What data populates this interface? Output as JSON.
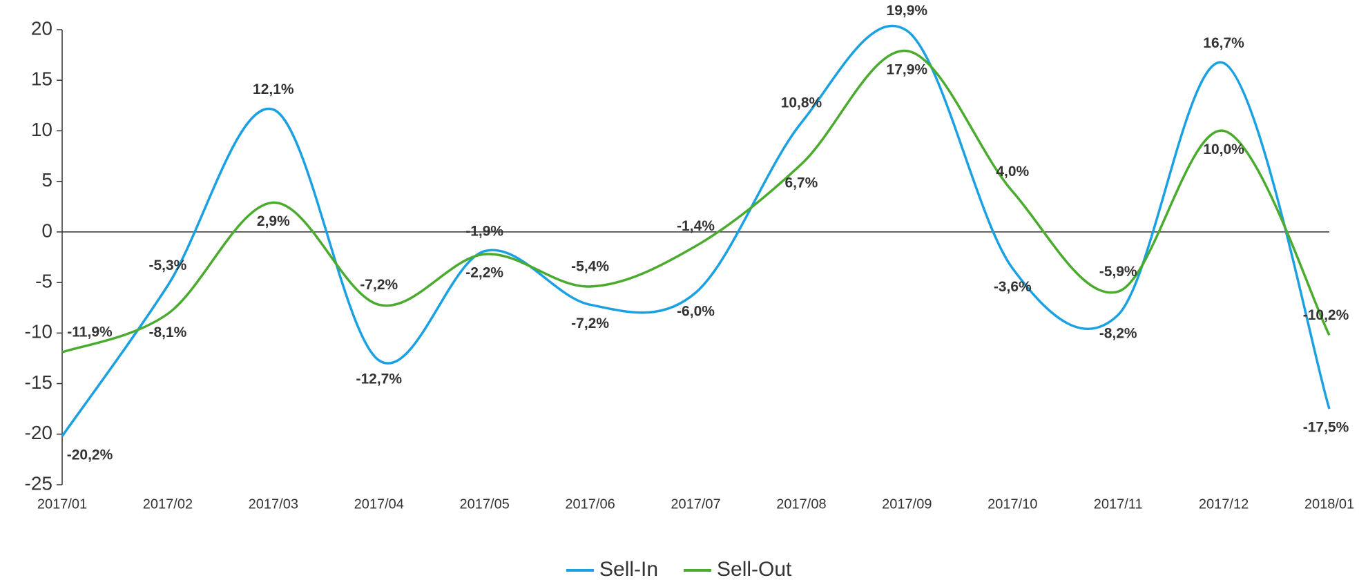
{
  "chart_data": {
    "type": "line",
    "categories": [
      "2017/01",
      "2017/02",
      "2017/03",
      "2017/04",
      "2017/05",
      "2017/06",
      "2017/07",
      "2017/08",
      "2017/09",
      "2017/10",
      "2017/11",
      "2017/12",
      "2018/01"
    ],
    "series": [
      {
        "name": "Sell-In",
        "color": "#1ba1e2",
        "values": [
          -20.2,
          -5.3,
          12.1,
          -12.7,
          -1.9,
          -7.2,
          -6.0,
          10.8,
          19.9,
          -3.6,
          -8.2,
          16.7,
          -17.5
        ],
        "value_labels": [
          "-20,2%",
          "-5,3%",
          "12,1%",
          "-12,7%",
          "-1,9%",
          "-7,2%",
          "-6,0%",
          "10,8%",
          "19,9%",
          "-3,6%",
          "-8,2%",
          "16,7%",
          "-17,5%"
        ]
      },
      {
        "name": "Sell-Out",
        "color": "#4aab2f",
        "values": [
          -11.9,
          -8.1,
          2.9,
          -7.2,
          -2.2,
          -5.4,
          -1.4,
          6.7,
          17.9,
          4.0,
          -5.9,
          10.0,
          -10.2
        ],
        "value_labels": [
          "-11,9%",
          "-8,1%",
          "2,9%",
          "-7,2%",
          "-2,2%",
          "-5,4%",
          "-1,4%",
          "6,7%",
          "17,9%",
          "4,0%",
          "-5,9%",
          "10,0%",
          "-10,2%"
        ]
      }
    ],
    "ylim": [
      -25,
      20
    ],
    "yticks": [
      -25,
      -20,
      -15,
      -10,
      -5,
      0,
      5,
      10,
      15,
      20
    ],
    "grid": false
  }
}
